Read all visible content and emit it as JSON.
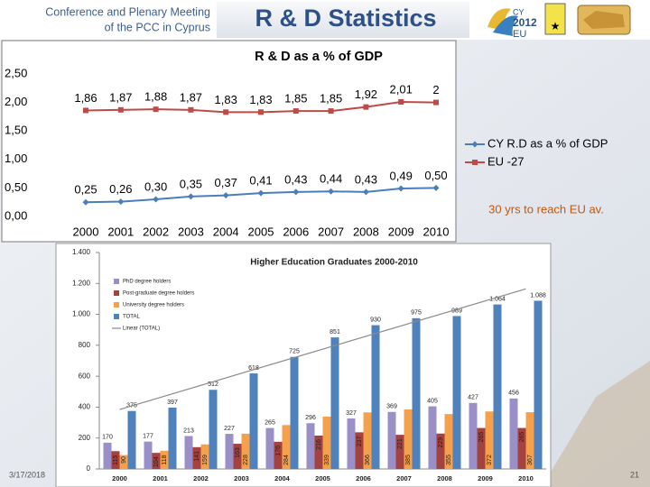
{
  "slide": {
    "header_left": [
      "Conference and Plenary Meeting",
      "of the PCC in Cyprus"
    ],
    "title": "R & D Statistics",
    "date": "3/17/2018",
    "page": "21"
  },
  "chart_data": [
    {
      "type": "line",
      "title": "R & D as a % of GDP",
      "categories": [
        "2000",
        "2001",
        "2002",
        "2003",
        "2004",
        "2005",
        "2006",
        "2007",
        "2008",
        "2009",
        "2010"
      ],
      "series": [
        {
          "name": "CY R.D as a % of GDP",
          "color": "#4a7ebb",
          "marker": "diamond",
          "values": [
            0.25,
            0.26,
            0.3,
            0.35,
            0.37,
            0.41,
            0.43,
            0.44,
            0.43,
            0.49,
            0.5
          ],
          "value_labels": [
            "0,25",
            "0,26",
            "0,30",
            "0,35",
            "0,37",
            "0,41",
            "0,43",
            "0,44",
            "0,43",
            "0,49",
            "0,50"
          ]
        },
        {
          "name": "EU -27",
          "color": "#be4b48",
          "marker": "square",
          "values": [
            1.86,
            1.87,
            1.88,
            1.87,
            1.83,
            1.83,
            1.85,
            1.85,
            1.92,
            2.01,
            2
          ],
          "value_labels": [
            "1,86",
            "1,87",
            "1,88",
            "1,87",
            "1,83",
            "1,83",
            "1,85",
            "1,85",
            "1,92",
            "2,01",
            "2"
          ]
        }
      ],
      "ylim": [
        0,
        2.5
      ],
      "yticks": [
        {
          "value": 0,
          "label": "0,00"
        },
        {
          "value": 0.5,
          "label": "0,50"
        },
        {
          "value": 1,
          "label": "1,00"
        },
        {
          "value": 1.5,
          "label": "1,50"
        },
        {
          "value": 2,
          "label": "2,00"
        },
        {
          "value": 2.5,
          "label": "2,50"
        }
      ],
      "grid": false,
      "legend": "right",
      "annotation": "30 yrs to reach EU av."
    },
    {
      "type": "bar",
      "title": "Higher Education Graduates 2000-2010",
      "categories": [
        "2000",
        "2001",
        "2002",
        "2003",
        "2004",
        "2005",
        "2006",
        "2007",
        "2008",
        "2009",
        "2010"
      ],
      "series": [
        {
          "name": "PhD degree holders",
          "color": "#9a8fc6",
          "values": [
            170,
            177,
            213,
            227,
            265,
            296,
            327,
            369,
            405,
            427,
            456
          ]
        },
        {
          "name": "Post-graduate degree holders",
          "color": "#a3423f",
          "values": [
            115,
            104,
            141,
            163,
            176,
            216,
            237,
            221,
            229,
            265,
            265
          ]
        },
        {
          "name": "University degree holders",
          "color": "#f5a04a",
          "values": [
            90,
            118,
            159,
            228,
            284,
            339,
            366,
            385,
            355,
            372,
            367
          ]
        },
        {
          "name": "TOTAL",
          "color": "#4f81bd",
          "values": [
            375,
            397,
            512,
            618,
            725,
            851,
            930,
            975,
            989,
            1064,
            1088
          ],
          "value_labels": [
            "375",
            "397",
            "512",
            "618",
            "725",
            "851",
            "930",
            "975",
            "989",
            "1.064",
            "1.088"
          ]
        }
      ],
      "trendline": {
        "name": "Linear (TOTAL)",
        "color": "#8a8a8a"
      },
      "ylim": [
        0,
        1400
      ],
      "yticks": [
        0,
        200,
        400,
        600,
        800,
        {
          "value": 1000,
          "label": "1.000"
        },
        {
          "value": 1200,
          "label": "1.200"
        },
        {
          "value": 1400,
          "label": "1.400"
        }
      ],
      "grid": false,
      "legend": "top-left"
    }
  ]
}
